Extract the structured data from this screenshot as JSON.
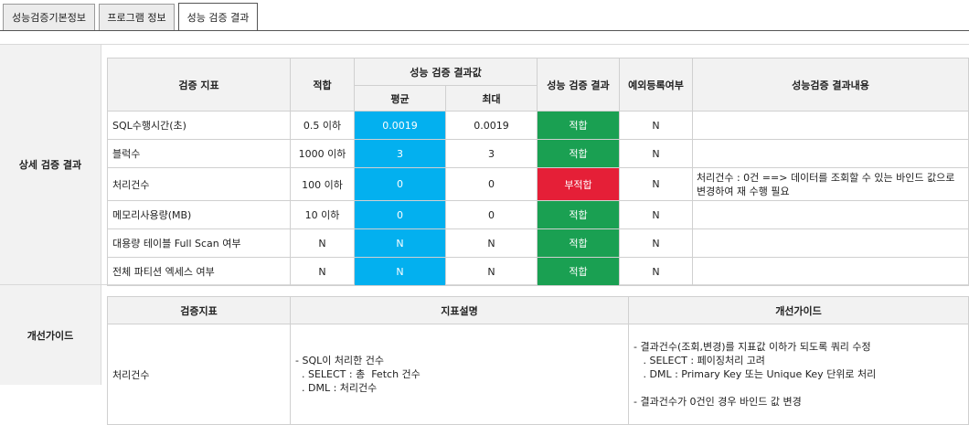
{
  "tabs": [
    {
      "label": "성능검증기본정보"
    },
    {
      "label": "프로그램 정보"
    },
    {
      "label": "성능 검증 결과"
    }
  ],
  "sections": {
    "detail_label": "상세 검증 결과",
    "guide_label": "개선가이드"
  },
  "detail_table": {
    "headers": {
      "metric": "검증 지표",
      "fit": "적합",
      "result_value": "성능 검증 결과값",
      "avg": "평균",
      "max": "최대",
      "result": "성능 검증 결과",
      "exception": "예외등록여부",
      "content": "성능검증 결과내용"
    },
    "rows": [
      {
        "metric": "SQL수행시간(초)",
        "fit": "0.5 이하",
        "avg": "0.0019",
        "max": "0.0019",
        "result": "적합",
        "exception": "N",
        "content": ""
      },
      {
        "metric": "블럭수",
        "fit": "1000 이하",
        "avg": "3",
        "max": "3",
        "result": "적합",
        "exception": "N",
        "content": ""
      },
      {
        "metric": "처리건수",
        "fit": "100 이하",
        "avg": "0",
        "max": "0",
        "result": "부적합",
        "exception": "N",
        "content": "처리건수 : 0건 ==> 데이터를 조회할 수 있는 바인드 값으로 변경하여 재 수행 필요"
      },
      {
        "metric": "메모리사용량(MB)",
        "fit": "10 이하",
        "avg": "0",
        "max": "0",
        "result": "적합",
        "exception": "N",
        "content": ""
      },
      {
        "metric": "대용량 테이블 Full Scan 여부",
        "fit": "N",
        "avg": "N",
        "max": "N",
        "result": "적합",
        "exception": "N",
        "content": ""
      },
      {
        "metric": "전체 파티션 엑세스 여부",
        "fit": "N",
        "avg": "N",
        "max": "N",
        "result": "적합",
        "exception": "N",
        "content": ""
      }
    ]
  },
  "guide_table": {
    "headers": {
      "metric": "검증지표",
      "desc": "지표설명",
      "guide": "개선가이드"
    },
    "rows": [
      {
        "metric": "처리건수",
        "desc": "- SQL이 처리한 건수\n  . SELECT : 총  Fetch 건수\n  . DML : 처리건수",
        "guide": "- 결과건수(조회,변경)를 지표값 이하가 되도록 쿼리 수정\n   . SELECT : 페이징처리 고려\n   . DML : Primary Key 또는 Unique Key 단위로 처리\n\n- 결과건수가 0건인 경우 바인드 값 변경"
      }
    ]
  },
  "colors": {
    "blue": "#03b0ef",
    "green": "#1aa052",
    "red": "#e51f37"
  }
}
